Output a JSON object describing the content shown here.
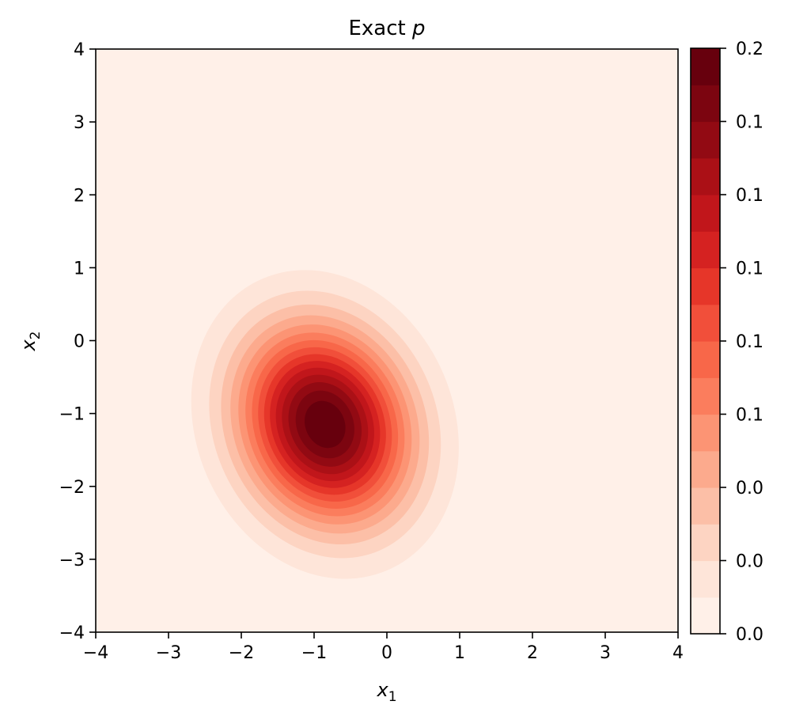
{
  "chart_data": {
    "type": "heatmap",
    "title": "Exact",
    "title_symbol": "p",
    "xlabel": "x",
    "xlabel_sub": "1",
    "ylabel": "x",
    "ylabel_sub": "2",
    "xlim": [
      -4,
      4
    ],
    "ylim": [
      -4,
      4
    ],
    "xticks": [
      -4,
      -3,
      -2,
      -1,
      0,
      1,
      2,
      3,
      4
    ],
    "yticks": [
      -4,
      -3,
      -2,
      -1,
      0,
      1,
      2,
      3,
      4
    ],
    "xtick_labels": [
      "−4",
      "−3",
      "−2",
      "−1",
      "0",
      "1",
      "2",
      "3",
      "4"
    ],
    "ytick_labels": [
      "−4",
      "−3",
      "−2",
      "−1",
      "0",
      "1",
      "2",
      "3",
      "4"
    ],
    "colormap": "Reds",
    "num_levels": 16,
    "level_colors": [
      "#fff0e8",
      "#fee5d9",
      "#fdd4c2",
      "#fcbfa7",
      "#fcaa8d",
      "#fc9474",
      "#fb7d5d",
      "#f86749",
      "#f14f3a",
      "#e63629",
      "#d52221",
      "#c1161b",
      "#ab1016",
      "#920a13",
      "#7c0510",
      "#67000d"
    ],
    "colorbar_tick_labels": [
      "0.0",
      "0.0",
      "0.0",
      "0.1",
      "0.1",
      "0.1",
      "0.1",
      "0.1",
      "0.2"
    ],
    "density": {
      "distribution": "bivariate_gaussian",
      "mean": [
        -0.85,
        -1.15
      ],
      "sigma_x1": 0.78,
      "sigma_x2": 0.9,
      "correlation": -0.15,
      "peak": 0.2
    },
    "grid": false
  }
}
